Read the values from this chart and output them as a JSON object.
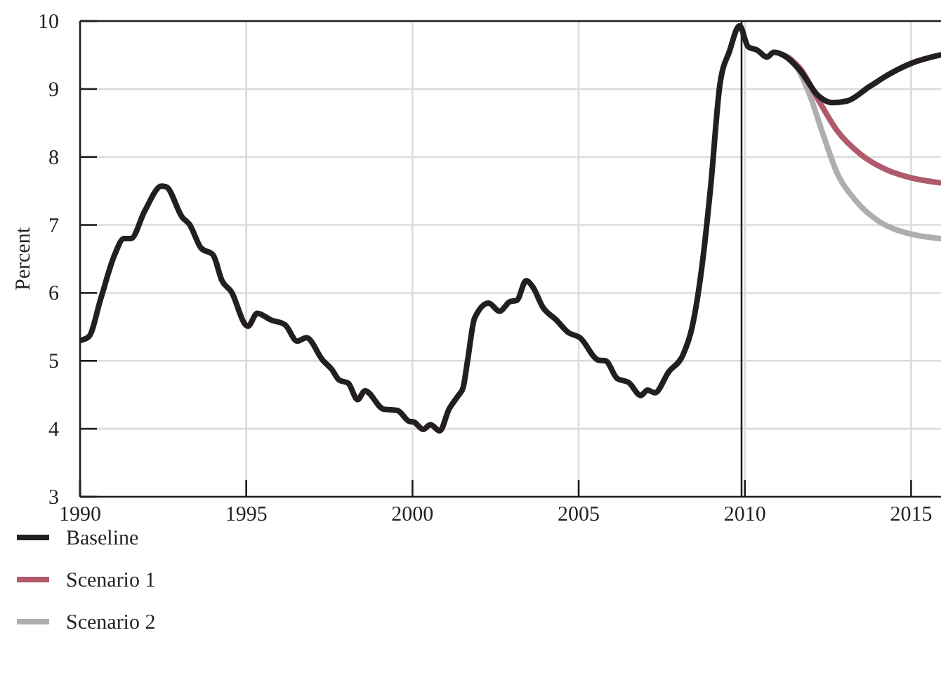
{
  "chart_data": {
    "type": "line",
    "ylabel": "Percent",
    "xlim": [
      1990,
      2015.9
    ],
    "ylim": [
      3,
      10
    ],
    "xticks": [
      1990,
      1995,
      2000,
      2005,
      2010,
      2015
    ],
    "yticks": [
      3,
      4,
      5,
      6,
      7,
      8,
      9,
      10
    ],
    "grid": true,
    "legend": "bottom",
    "line_style": "solid",
    "marker": "none",
    "ref_lines": [
      {
        "axis": "x",
        "value": 2009.9,
        "label": null,
        "color": "#231f20"
      }
    ],
    "series": [
      {
        "name": "Baseline",
        "color": "#231f20",
        "x": [
          1990.0,
          1990.27,
          1990.62,
          1991.04,
          1991.32,
          1991.53,
          1991.95,
          1992.45,
          1992.59,
          1993.08,
          1993.29,
          1993.64,
          1994.0,
          1994.27,
          1994.56,
          1994.98,
          1995.05,
          1995.33,
          1995.75,
          1996.17,
          1996.53,
          1996.81,
          1997.3,
          1997.58,
          1997.79,
          1998.07,
          1998.35,
          1998.57,
          1999.13,
          1999.55,
          1999.9,
          2000.04,
          2000.32,
          2000.54,
          2000.82,
          2001.1,
          2001.38,
          2001.52,
          2001.66,
          2001.87,
          2002.29,
          2002.62,
          2002.93,
          2003.14,
          2003.42,
          2003.63,
          2003.91,
          2004.33,
          2004.68,
          2005.04,
          2005.6,
          2005.81,
          2006.16,
          2006.51,
          2006.87,
          2007.07,
          2007.29,
          2007.71,
          2008.13,
          2008.41,
          2008.69,
          2008.97,
          2009.25,
          2009.54,
          2009.84,
          2010.1,
          2010.38,
          2010.66,
          2010.87,
          2011.15,
          2011.65,
          2012.21,
          2012.63,
          2013.05,
          2013.76,
          2014.46,
          2015.02,
          2015.87
        ],
        "values": [
          5.3,
          5.36,
          5.91,
          6.56,
          6.8,
          6.8,
          7.21,
          7.57,
          7.56,
          7.11,
          7.01,
          6.66,
          6.56,
          6.18,
          6.01,
          5.53,
          5.51,
          5.7,
          5.6,
          5.53,
          5.29,
          5.34,
          5.01,
          4.87,
          4.72,
          4.67,
          4.43,
          4.56,
          4.29,
          4.27,
          4.11,
          4.1,
          3.99,
          4.06,
          3.97,
          4.29,
          4.49,
          4.6,
          5.01,
          5.63,
          5.85,
          5.73,
          5.87,
          5.89,
          6.18,
          6.08,
          5.8,
          5.6,
          5.42,
          5.34,
          5.01,
          5.0,
          4.74,
          4.68,
          4.49,
          4.57,
          4.53,
          4.84,
          5.08,
          5.49,
          6.32,
          7.56,
          9.07,
          9.56,
          9.93,
          9.62,
          9.57,
          9.47,
          9.54,
          9.5,
          9.28,
          8.9,
          8.8,
          8.82,
          9.04,
          9.25,
          9.38,
          9.5
        ]
      },
      {
        "name": "Scenario 1",
        "color": "#b05a6c",
        "x": [
          2011.15,
          2011.65,
          2012.21,
          2012.77,
          2013.48,
          2014.18,
          2015.02,
          2015.87
        ],
        "values": [
          9.5,
          9.31,
          8.84,
          8.39,
          8.04,
          7.83,
          7.69,
          7.62
        ]
      },
      {
        "name": "Scenario 2",
        "color": "#aeaeb0",
        "x": [
          2011.15,
          2011.37,
          2011.93,
          2012.36,
          2012.77,
          2013.33,
          2014.04,
          2014.88,
          2015.87
        ],
        "values": [
          9.5,
          9.45,
          8.94,
          8.32,
          7.77,
          7.36,
          7.05,
          6.88,
          6.8
        ]
      }
    ]
  }
}
